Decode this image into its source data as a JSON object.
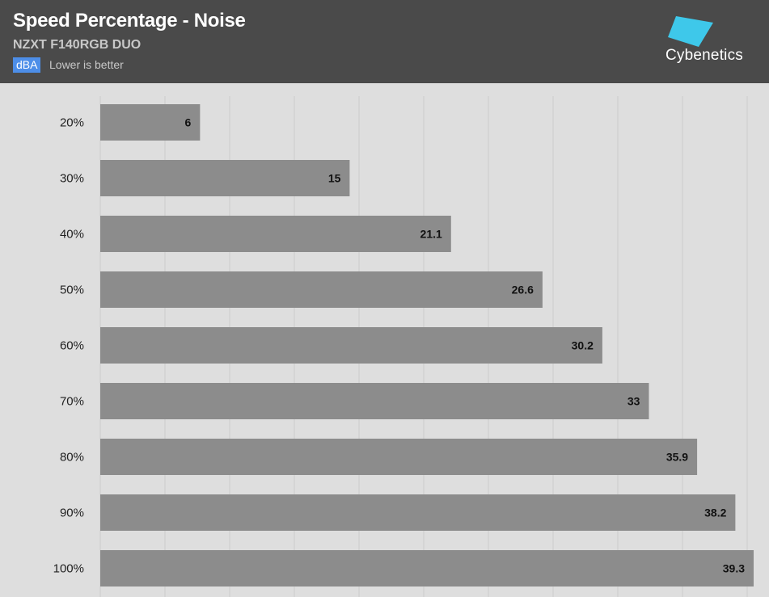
{
  "header": {
    "title": "Speed Percentage - Noise",
    "subtitle": "NZXT F140RGB DUO",
    "unit": "dBA",
    "note": "Lower is better",
    "brand": "Cybenetics"
  },
  "colors": {
    "header_bg": "#4a4a4a",
    "plot_bg": "#dedede",
    "bar": "#8c8c8c",
    "grid": "#cccccc",
    "badge": "#4d8ee8",
    "logo": "#3ec8ea"
  },
  "chart_data": {
    "type": "bar",
    "orientation": "horizontal",
    "categories": [
      "20%",
      "30%",
      "40%",
      "50%",
      "60%",
      "70%",
      "80%",
      "90%",
      "100%"
    ],
    "values": [
      6,
      15,
      21.1,
      26.6,
      30.2,
      33,
      35.9,
      38.2,
      39.3
    ],
    "xlim": [
      0,
      39.3
    ],
    "grid": true,
    "data_labels": true
  }
}
